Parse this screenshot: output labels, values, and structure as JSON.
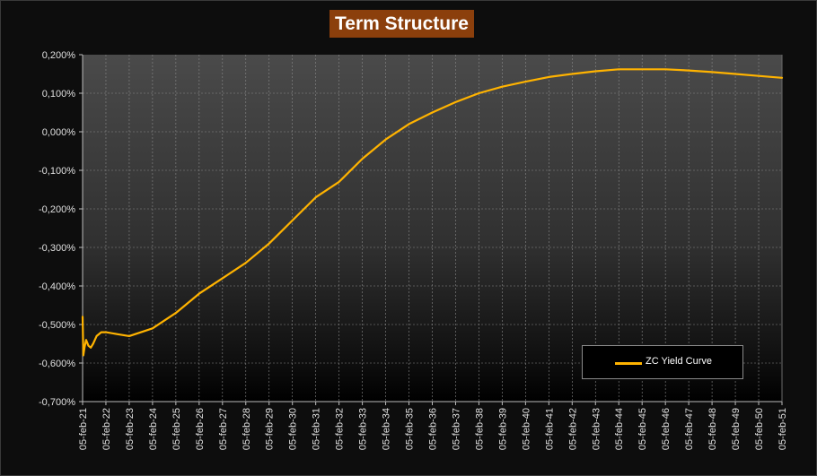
{
  "chart_data": {
    "type": "line",
    "title": "Term Structure",
    "xlabel": "",
    "ylabel": "",
    "x_ticks": [
      "05-feb-21",
      "05-feb-22",
      "05-feb-23",
      "05-feb-24",
      "05-feb-25",
      "05-feb-26",
      "05-feb-27",
      "05-feb-28",
      "05-feb-29",
      "05-feb-30",
      "05-feb-31",
      "05-feb-32",
      "05-feb-33",
      "05-feb-34",
      "05-feb-35",
      "05-feb-36",
      "05-feb-37",
      "05-feb-38",
      "05-feb-39",
      "05-feb-40",
      "05-feb-41",
      "05-feb-42",
      "05-feb-43",
      "05-feb-44",
      "05-feb-45",
      "05-feb-46",
      "05-feb-47",
      "05-feb-48",
      "05-feb-49",
      "05-feb-50",
      "05-feb-51"
    ],
    "y_ticks": [
      "0,200%",
      "0,100%",
      "0,000%",
      "-0,100%",
      "-0,200%",
      "-0,300%",
      "-0,400%",
      "-0,500%",
      "-0,600%",
      "-0,700%"
    ],
    "xlim": [
      2021,
      2051
    ],
    "ylim": [
      -0.7,
      0.2
    ],
    "grid": true,
    "legend_position": "bottom-right",
    "series": [
      {
        "name": "ZC Yield Curve",
        "color": "#ffb300",
        "x": [
          2021.0,
          2021.03,
          2021.08,
          2021.15,
          2021.25,
          2021.35,
          2021.45,
          2021.6,
          2021.8,
          2022.0,
          2022.5,
          2023.0,
          2024.0,
          2025.0,
          2026.0,
          2027.0,
          2028.0,
          2029.0,
          2030.0,
          2031.0,
          2032.0,
          2033.0,
          2034.0,
          2035.0,
          2036.0,
          2037.0,
          2038.0,
          2039.0,
          2040.0,
          2041.0,
          2042.0,
          2043.0,
          2044.0,
          2045.0,
          2046.0,
          2047.0,
          2048.0,
          2049.0,
          2050.0,
          2051.0
        ],
        "y": [
          -0.48,
          -0.58,
          -0.56,
          -0.54,
          -0.555,
          -0.56,
          -0.55,
          -0.53,
          -0.52,
          -0.52,
          -0.525,
          -0.53,
          -0.51,
          -0.47,
          -0.42,
          -0.38,
          -0.34,
          -0.29,
          -0.23,
          -0.17,
          -0.13,
          -0.07,
          -0.02,
          0.02,
          0.05,
          0.077,
          0.1,
          0.117,
          0.13,
          0.142,
          0.15,
          0.157,
          0.162,
          0.162,
          0.162,
          0.159,
          0.155,
          0.15,
          0.145,
          0.14
        ]
      }
    ]
  }
}
